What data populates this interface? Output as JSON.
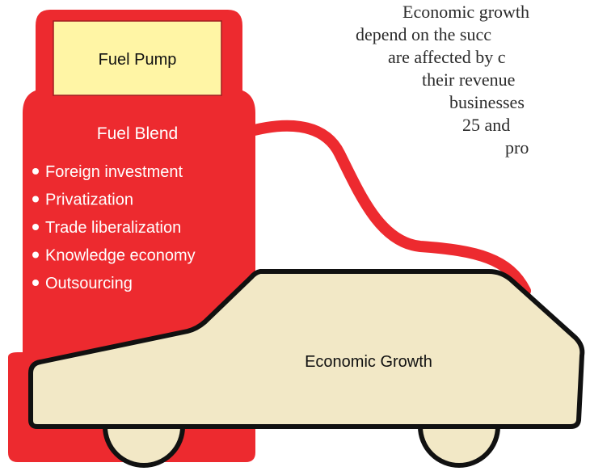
{
  "pump": {
    "label": "Fuel Pump"
  },
  "blend": {
    "title": "Fuel Blend",
    "items": [
      "Foreign investment",
      "Privatization",
      "Trade liberalization",
      "Knowledge economy",
      "Outsourcing"
    ]
  },
  "car": {
    "label": "Economic Growth"
  },
  "paragraph": {
    "lines": [
      "Economic growth",
      "depend on the succ",
      "are affected by c",
      "their revenue",
      "businesses",
      "25 and",
      "pro"
    ]
  }
}
